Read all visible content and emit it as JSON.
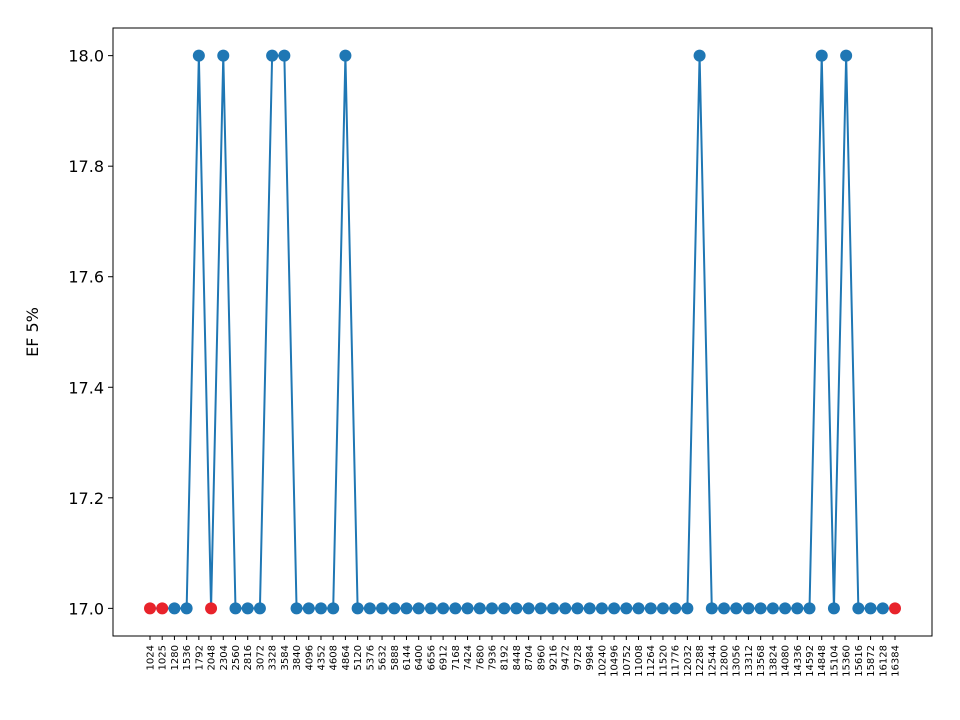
{
  "chart_data": {
    "type": "line",
    "title": "",
    "xlabel": "",
    "ylabel": "EF 5%",
    "ylim": [
      16.95,
      18.05
    ],
    "y_ticks": [
      17.0,
      17.2,
      17.4,
      17.6,
      17.8,
      18.0
    ],
    "y_tick_labels": [
      "17.0",
      "17.2",
      "17.4",
      "17.6",
      "17.8",
      "18.0"
    ],
    "grid": false,
    "legend": "none",
    "line_color": "#1f77b4",
    "highlight_color": "#e8232b",
    "categories": [
      "1024",
      "1025",
      "1280",
      "1536",
      "1792",
      "2048",
      "2304",
      "2560",
      "2816",
      "3072",
      "3328",
      "3584",
      "3840",
      "4096",
      "4352",
      "4608",
      "4864",
      "5120",
      "5376",
      "5632",
      "5888",
      "6144",
      "6400",
      "6656",
      "6912",
      "7168",
      "7424",
      "7680",
      "7936",
      "8192",
      "8448",
      "8704",
      "8960",
      "9216",
      "9472",
      "9728",
      "9984",
      "10240",
      "10496",
      "10752",
      "11008",
      "11264",
      "11520",
      "11776",
      "12032",
      "12288",
      "12544",
      "12800",
      "13056",
      "13312",
      "13568",
      "13824",
      "14080",
      "14336",
      "14592",
      "14848",
      "15104",
      "15360",
      "15616",
      "15872",
      "16128",
      "16384"
    ],
    "tick_labels": [
      "1024",
      "1025",
      "1280",
      "1536",
      "1792",
      "2048",
      "2304",
      "2560",
      "2816",
      "3072",
      "3328",
      "3584",
      "3840",
      "4096",
      "4352",
      "4608",
      "4864",
      "5120",
      "5376",
      "5632",
      "5888",
      "6144",
      "6400",
      "6656",
      "6912",
      "7168",
      "7424",
      "7680",
      "7936",
      "8192",
      "8448",
      "8704",
      "8960",
      "9216",
      "9472",
      "9728",
      "9984",
      "10240",
      "10496",
      "10752",
      "11008",
      "11264",
      "11520",
      "11776",
      "12032",
      "12288",
      "12544",
      "12800",
      "13056",
      "13312",
      "13568",
      "13824",
      "14080",
      "14336",
      "14592",
      "14848",
      "15104",
      "15360",
      "15616",
      "15872",
      "16128",
      "16384"
    ],
    "values": [
      17,
      17,
      17,
      17,
      18,
      17,
      18,
      17,
      17,
      17,
      18,
      18,
      17,
      17,
      17,
      17,
      18,
      17,
      17,
      17,
      17,
      17,
      17,
      17,
      17,
      17,
      17,
      17,
      17,
      17,
      17,
      17,
      17,
      17,
      17,
      17,
      17,
      17,
      17,
      17,
      17,
      17,
      17,
      17,
      17,
      18,
      17,
      17,
      17,
      17,
      17,
      17,
      17,
      17,
      17,
      18,
      17,
      18,
      17,
      17,
      17,
      17
    ],
    "highlight_indices": [
      0,
      1,
      5,
      61
    ]
  }
}
